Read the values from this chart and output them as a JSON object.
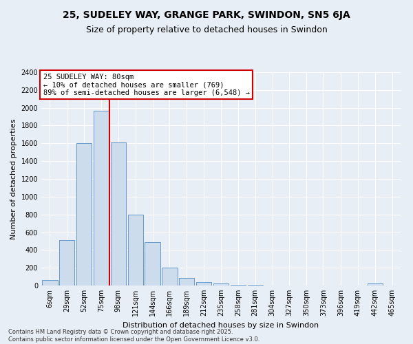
{
  "title": "25, SUDELEY WAY, GRANGE PARK, SWINDON, SN5 6JA",
  "subtitle": "Size of property relative to detached houses in Swindon",
  "xlabel": "Distribution of detached houses by size in Swindon",
  "ylabel": "Number of detached properties",
  "bar_color": "#ccdcec",
  "bar_edge_color": "#6699cc",
  "background_color": "#e8eef5",
  "grid_color": "#ffffff",
  "categories": [
    "6sqm",
    "29sqm",
    "52sqm",
    "75sqm",
    "98sqm",
    "121sqm",
    "144sqm",
    "166sqm",
    "189sqm",
    "212sqm",
    "235sqm",
    "258sqm",
    "281sqm",
    "304sqm",
    "327sqm",
    "350sqm",
    "373sqm",
    "396sqm",
    "419sqm",
    "442sqm",
    "465sqm"
  ],
  "values": [
    65,
    510,
    1600,
    1970,
    1610,
    800,
    490,
    200,
    85,
    40,
    25,
    10,
    5,
    3,
    2,
    1,
    1,
    0,
    0,
    20,
    0
  ],
  "ylim": [
    0,
    2400
  ],
  "yticks": [
    0,
    200,
    400,
    600,
    800,
    1000,
    1200,
    1400,
    1600,
    1800,
    2000,
    2200,
    2400
  ],
  "vline_x": 3.5,
  "vline_color": "#cc0000",
  "annotation_title": "25 SUDELEY WAY: 80sqm",
  "annotation_line1": "← 10% of detached houses are smaller (769)",
  "annotation_line2": "89% of semi-detached houses are larger (6,548) →",
  "annotation_box_color": "#ffffff",
  "annotation_box_edge": "#cc0000",
  "footer_line1": "Contains HM Land Registry data © Crown copyright and database right 2025.",
  "footer_line2": "Contains public sector information licensed under the Open Government Licence v3.0.",
  "title_fontsize": 10,
  "subtitle_fontsize": 9,
  "axis_label_fontsize": 8,
  "tick_fontsize": 7,
  "annotation_fontsize": 7.5,
  "footer_fontsize": 6
}
